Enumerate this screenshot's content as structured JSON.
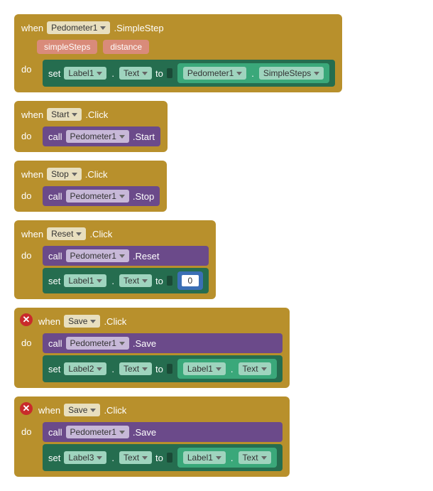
{
  "colors": {
    "event_bg": "#b8902c",
    "call_bg": "#6b4a8a",
    "set_bg": "#256d4f",
    "get_bg": "#3aa87a",
    "num_bg": "#3b6fb5",
    "param_bg": "#d98b7a",
    "dd_event": "#e8dfbf",
    "dd_purple": "#c7b8d8",
    "dd_teal": "#9fd4be",
    "error_badge": "#c92b2b"
  },
  "kw": {
    "when": "when",
    "do": "do",
    "call": "call",
    "set": "set",
    "to": "to"
  },
  "blocks": [
    {
      "type": "event",
      "error": false,
      "target": "Pedometer1",
      "event": ".SimpleStep",
      "params": [
        "simpleSteps",
        "distance"
      ],
      "body": [
        {
          "type": "set",
          "target": "Label1",
          "prop": "Text",
          "value": {
            "type": "get",
            "target": "Pedometer1",
            "prop": "SimpleSteps"
          }
        }
      ]
    },
    {
      "type": "event",
      "error": false,
      "target": "Start",
      "event": ".Click",
      "body": [
        {
          "type": "call",
          "target": "Pedometer1",
          "method": ".Start"
        }
      ]
    },
    {
      "type": "event",
      "error": false,
      "target": "Stop",
      "event": ".Click",
      "body": [
        {
          "type": "call",
          "target": "Pedometer1",
          "method": ".Stop"
        }
      ]
    },
    {
      "type": "event",
      "error": false,
      "target": "Reset",
      "event": ".Click",
      "body": [
        {
          "type": "call",
          "target": "Pedometer1",
          "method": ".Reset"
        },
        {
          "type": "set",
          "target": "Label1",
          "prop": "Text",
          "value": {
            "type": "num",
            "value": "0"
          }
        }
      ]
    },
    {
      "type": "event",
      "error": true,
      "target": "Save",
      "event": ".Click",
      "body": [
        {
          "type": "call",
          "target": "Pedometer1",
          "method": ".Save"
        },
        {
          "type": "set",
          "target": "Label2",
          "prop": "Text",
          "value": {
            "type": "get",
            "target": "Label1",
            "prop": "Text"
          }
        }
      ]
    },
    {
      "type": "event",
      "error": true,
      "target": "Save",
      "event": ".Click",
      "body": [
        {
          "type": "call",
          "target": "Pedometer1",
          "method": ".Save"
        },
        {
          "type": "set",
          "target": "Label3",
          "prop": "Text",
          "value": {
            "type": "get",
            "target": "Label1",
            "prop": "Text"
          }
        }
      ]
    }
  ],
  "error_glyph": "✕"
}
